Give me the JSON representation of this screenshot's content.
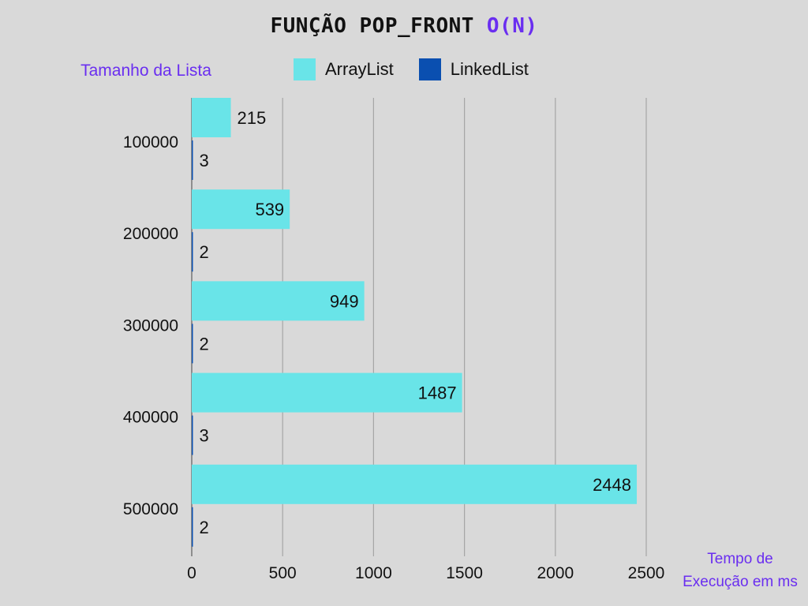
{
  "title": "FUNÇÃO POP_FRONT",
  "title_complexity": "O(N)",
  "colors": {
    "arraylist": "#69e4e8",
    "linkedlist": "#0a4fb0",
    "accent": "#6a2ef0",
    "grid": "#a6a6a6",
    "background": "#d9d9d9"
  },
  "chart_data": {
    "type": "bar",
    "orientation": "horizontal",
    "title": "FUNÇÃO POP_FRONT O(N)",
    "ylabel": "Tamanho da Lista",
    "xlabel": "Tempo de Execução em ms",
    "categories": [
      "100000",
      "200000",
      "300000",
      "400000",
      "500000"
    ],
    "series": [
      {
        "name": "ArrayList",
        "values": [
          215,
          539,
          949,
          1487,
          2448
        ]
      },
      {
        "name": "LinkedList",
        "values": [
          3,
          2,
          2,
          3,
          2
        ]
      }
    ],
    "xlim": [
      0,
      2500
    ],
    "xticks": [
      "0",
      "500",
      "1000",
      "1500",
      "2000",
      "2500"
    ],
    "grid": "vertical",
    "legend": "top-center"
  }
}
